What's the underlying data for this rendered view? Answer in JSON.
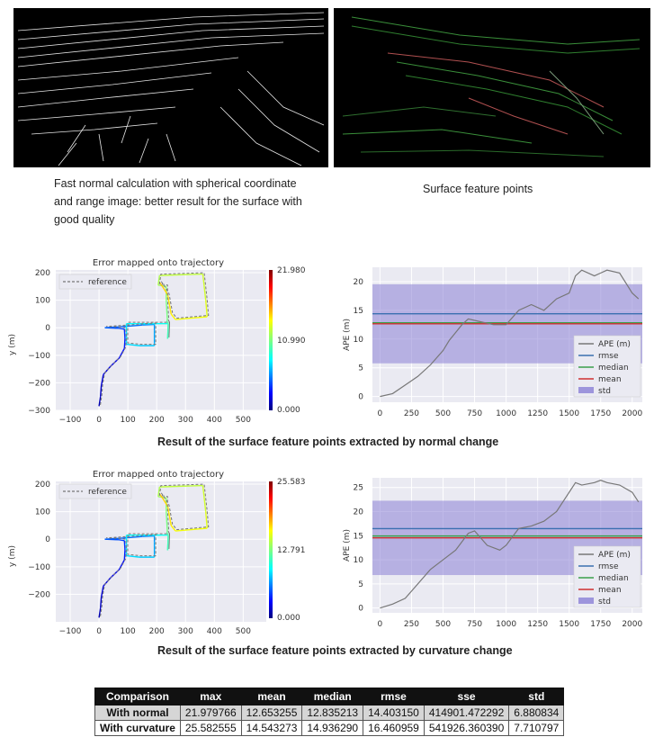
{
  "captions": {
    "left_image": "Fast normal calculation with spherical coordinate and range image:   better result for the surface with good quality",
    "right_image": "Surface feature points",
    "section1": "Result of the surface feature points extracted by normal change",
    "section2": "Result of the surface feature points extracted by curvature change"
  },
  "chart_data": [
    {
      "type": "line",
      "title": "Error mapped onto trajectory",
      "xlabel": "",
      "ylabel": "y (m)",
      "xlim": [
        -150,
        580
      ],
      "ylim": [
        -300,
        210
      ],
      "xticks": [
        "−100",
        "0",
        "100",
        "200",
        "300",
        "400",
        "500"
      ],
      "yticks": [
        "200",
        "100",
        "0",
        "−100",
        "−200",
        "−300"
      ],
      "legend": "reference",
      "colorbar": [
        "21.980",
        "10.990",
        "0.000"
      ],
      "trajectory": [
        [
          0,
          -285
        ],
        [
          5,
          -250
        ],
        [
          8,
          -210
        ],
        [
          15,
          -170
        ],
        [
          40,
          -140
        ],
        [
          70,
          -110
        ],
        [
          88,
          -75
        ],
        [
          90,
          -40
        ],
        [
          88,
          -5
        ],
        [
          70,
          -2
        ],
        [
          20,
          0
        ],
        [
          95,
          5
        ],
        [
          150,
          10
        ],
        [
          192,
          12
        ],
        [
          192,
          -10
        ],
        [
          192,
          -55
        ],
        [
          192,
          -65
        ],
        [
          140,
          -65
        ],
        [
          95,
          -60
        ],
        [
          95,
          15
        ],
        [
          215,
          15
        ],
        [
          240,
          15
        ],
        [
          240,
          10
        ],
        [
          238,
          -40
        ],
        [
          240,
          15
        ],
        [
          235,
          25
        ],
        [
          237,
          28
        ],
        [
          233,
          100
        ],
        [
          233,
          150
        ],
        [
          205,
          155
        ],
        [
          210,
          190
        ],
        [
          360,
          195
        ],
        [
          370,
          100
        ],
        [
          375,
          40
        ],
        [
          265,
          30
        ],
        [
          250,
          50
        ],
        [
          238,
          120
        ],
        [
          220,
          150
        ],
        [
          210,
          165
        ]
      ]
    },
    {
      "type": "line",
      "title": "",
      "xlabel": "",
      "ylabel": "APE (m)",
      "xlim": [
        -60,
        2080
      ],
      "ylim": [
        -1,
        22.5
      ],
      "xticks": [
        "0",
        "250",
        "500",
        "750",
        "1000",
        "1250",
        "1500",
        "1750",
        "2000"
      ],
      "yticks": [
        "20",
        "15",
        "10",
        "5",
        "0"
      ],
      "legend": [
        "APE (m)",
        "rmse",
        "median",
        "mean",
        "std"
      ],
      "rmse": 14.40315,
      "median": 12.835213,
      "mean": 12.653255,
      "std": 6.880834,
      "ape": [
        [
          0,
          0
        ],
        [
          100,
          0.5
        ],
        [
          200,
          2
        ],
        [
          300,
          3.5
        ],
        [
          400,
          5.5
        ],
        [
          500,
          8
        ],
        [
          550,
          9.8
        ],
        [
          650,
          12.5
        ],
        [
          700,
          13.5
        ],
        [
          800,
          13
        ],
        [
          900,
          12.5
        ],
        [
          1000,
          12.5
        ],
        [
          1100,
          15
        ],
        [
          1200,
          16
        ],
        [
          1300,
          15
        ],
        [
          1400,
          17
        ],
        [
          1500,
          18
        ],
        [
          1550,
          21
        ],
        [
          1600,
          22
        ],
        [
          1700,
          21
        ],
        [
          1750,
          21.5
        ],
        [
          1800,
          22
        ],
        [
          1900,
          21.5
        ],
        [
          2000,
          18
        ],
        [
          2050,
          17
        ]
      ]
    },
    {
      "type": "line",
      "title": "Error mapped onto trajectory",
      "xlabel": "",
      "ylabel": "y (m)",
      "xlim": [
        -150,
        580
      ],
      "ylim": [
        -300,
        210
      ],
      "xticks": [
        "−100",
        "0",
        "100",
        "200",
        "300",
        "400",
        "500"
      ],
      "yticks": [
        "200",
        "100",
        "0",
        "−100",
        "−200"
      ],
      "legend": "reference",
      "colorbar": [
        "25.583",
        "12.791",
        "0.000"
      ],
      "trajectory": [
        [
          0,
          -285
        ],
        [
          5,
          -250
        ],
        [
          8,
          -210
        ],
        [
          15,
          -170
        ],
        [
          40,
          -140
        ],
        [
          70,
          -110
        ],
        [
          88,
          -75
        ],
        [
          90,
          -40
        ],
        [
          88,
          -5
        ],
        [
          70,
          -2
        ],
        [
          20,
          0
        ],
        [
          95,
          5
        ],
        [
          150,
          10
        ],
        [
          192,
          12
        ],
        [
          192,
          -10
        ],
        [
          192,
          -55
        ],
        [
          192,
          -65
        ],
        [
          140,
          -65
        ],
        [
          95,
          -60
        ],
        [
          95,
          15
        ],
        [
          215,
          15
        ],
        [
          240,
          15
        ],
        [
          240,
          10
        ],
        [
          238,
          -40
        ],
        [
          240,
          15
        ],
        [
          235,
          25
        ],
        [
          237,
          28
        ],
        [
          233,
          100
        ],
        [
          233,
          150
        ],
        [
          205,
          155
        ],
        [
          210,
          190
        ],
        [
          360,
          195
        ],
        [
          370,
          100
        ],
        [
          375,
          40
        ],
        [
          265,
          30
        ],
        [
          250,
          50
        ],
        [
          238,
          120
        ],
        [
          220,
          150
        ],
        [
          210,
          165
        ]
      ]
    },
    {
      "type": "line",
      "title": "",
      "xlabel": "",
      "ylabel": "APE (m)",
      "xlim": [
        -60,
        2080
      ],
      "ylim": [
        -1,
        27
      ],
      "xticks": [
        "0",
        "250",
        "500",
        "750",
        "1000",
        "1250",
        "1500",
        "1750",
        "2000"
      ],
      "yticks": [
        "25",
        "20",
        "15",
        "10",
        "5",
        "0"
      ],
      "legend": [
        "APE (m)",
        "rmse",
        "median",
        "mean",
        "std"
      ],
      "rmse": 16.460959,
      "median": 14.93629,
      "mean": 14.543273,
      "std": 7.710797,
      "ape": [
        [
          0,
          0
        ],
        [
          100,
          0.8
        ],
        [
          200,
          2
        ],
        [
          300,
          5
        ],
        [
          400,
          8
        ],
        [
          500,
          10
        ],
        [
          600,
          12
        ],
        [
          700,
          15.5
        ],
        [
          750,
          16
        ],
        [
          850,
          13
        ],
        [
          950,
          12
        ],
        [
          1000,
          13
        ],
        [
          1100,
          16.5
        ],
        [
          1200,
          17
        ],
        [
          1300,
          18
        ],
        [
          1400,
          20
        ],
        [
          1500,
          24
        ],
        [
          1550,
          26
        ],
        [
          1600,
          25.5
        ],
        [
          1700,
          26
        ],
        [
          1750,
          26.5
        ],
        [
          1800,
          26
        ],
        [
          1900,
          25.5
        ],
        [
          2000,
          24
        ],
        [
          2050,
          22
        ]
      ]
    }
  ],
  "table": {
    "headers": [
      "Comparison",
      "max",
      "mean",
      "median",
      "rmse",
      "sse",
      "std"
    ],
    "rows": [
      [
        "With normal",
        "21.979766",
        "12.653255",
        "12.835213",
        "14.403150",
        "414901.472292",
        "6.880834"
      ],
      [
        "With curvature",
        "25.582555",
        "14.543273",
        "14.936290",
        "16.460959",
        "541926.360390",
        "7.710797"
      ]
    ]
  }
}
